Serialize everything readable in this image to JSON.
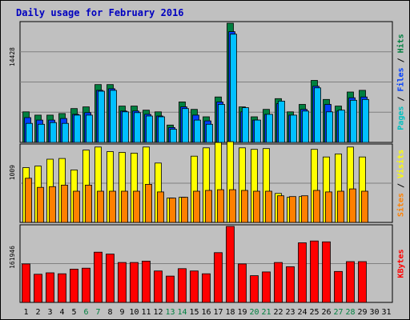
{
  "chart_data": {
    "type": "bar",
    "title": "Daily usage for February 2016",
    "categories": [
      "1",
      "2",
      "3",
      "4",
      "5",
      "6",
      "7",
      "8",
      "9",
      "10",
      "11",
      "12",
      "13",
      "14",
      "15",
      "16",
      "17",
      "18",
      "19",
      "20",
      "21",
      "22",
      "23",
      "24",
      "25",
      "26",
      "27",
      "28",
      "29",
      "30",
      "31"
    ],
    "weekend_days": [
      6,
      7,
      13,
      14,
      20,
      21,
      27,
      28
    ],
    "panels": [
      {
        "scale_max": 14428,
        "scale_label": "14428",
        "axis_label_parts": [
          {
            "text": "Pages",
            "color": "#00c0c0"
          },
          {
            "text": " / ",
            "color": "#000000"
          },
          {
            "text": "Files",
            "color": "#0040ff"
          },
          {
            "text": " / ",
            "color": "#000000"
          },
          {
            "text": "Hits",
            "color": "#008040"
          }
        ],
        "series": [
          {
            "name": "Hits",
            "color": "#008040",
            "values": [
              3700,
              3300,
              3300,
              3500,
              4100,
              4300,
              7000,
              7000,
              4400,
              4400,
              3900,
              3700,
              2100,
              4900,
              4000,
              3100,
              5500,
              14428,
              4300,
              3100,
              4000,
              5300,
              3700,
              4600,
              7500,
              5200,
              4400,
              6100,
              6300,
              0,
              0
            ]
          },
          {
            "name": "Files",
            "color": "#0040ff",
            "values": [
              3000,
              2700,
              2700,
              2900,
              3400,
              3600,
              6300,
              6500,
              3800,
              3800,
              3400,
              3200,
              1800,
              4300,
              3300,
              2600,
              4900,
              13400,
              3700,
              2700,
              3400,
              4700,
              3300,
              4000,
              6800,
              4600,
              3800,
              5400,
              5500,
              0,
              0
            ]
          },
          {
            "name": "Pages",
            "color": "#00c0ff",
            "values": [
              2300,
              2200,
              2400,
              2300,
              3300,
              3300,
              6200,
              6300,
              3700,
              3600,
              3200,
              3100,
              1600,
              4100,
              2700,
              2200,
              4600,
              13100,
              4200,
              2700,
              3400,
              5000,
              3300,
              3800,
              6600,
              3700,
              3900,
              5100,
              5200,
              0,
              0
            ]
          }
        ]
      },
      {
        "scale_max": 1009,
        "scale_label": "1009",
        "axis_label_parts": [
          {
            "text": "Sites",
            "color": "#ff8000"
          },
          {
            "text": " / ",
            "color": "#000000"
          },
          {
            "text": "Visits",
            "color": "#ffff00"
          }
        ],
        "series": [
          {
            "name": "Visits",
            "color": "#ffff00",
            "values": [
              720,
              740,
              830,
              840,
              690,
              950,
              990,
              930,
              920,
              910,
              990,
              780,
              320,
              330,
              870,
              980,
              1050,
              1060,
              980,
              960,
              970,
              380,
              330,
              340,
              960,
              860,
              900,
              990,
              860,
              0,
              0
            ]
          },
          {
            "name": "Sites",
            "color": "#ff8000",
            "values": [
              580,
              460,
              470,
              490,
              410,
              490,
              410,
              410,
              410,
              410,
              500,
              400,
              320,
              330,
              410,
              420,
              430,
              430,
              420,
              410,
              410,
              350,
              340,
              350,
              420,
              400,
              410,
              440,
              410,
              0,
              0
            ]
          }
        ]
      },
      {
        "scale_max": 161946,
        "scale_label": "161946",
        "axis_label_parts": [
          {
            "text": "KBytes",
            "color": "#ff0000"
          }
        ],
        "series": [
          {
            "name": "KBytes",
            "color": "#ff0000",
            "values": [
              82000,
              60000,
              63000,
              61000,
              71000,
              73000,
              107000,
              103000,
              85000,
              85000,
              88000,
              67000,
              56000,
              72000,
              67000,
              61000,
              106000,
              161946,
              82000,
              57000,
              65000,
              85000,
              76000,
              127000,
              131000,
              129000,
              66000,
              87000,
              87000,
              0,
              0
            ]
          }
        ]
      }
    ]
  }
}
